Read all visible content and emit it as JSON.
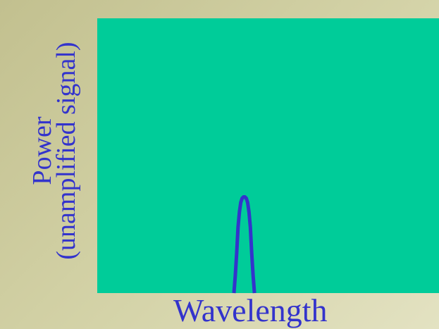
{
  "colors": {
    "plot_background": "#00cc99",
    "curve": "#3333cc",
    "label_text": "#3333cc"
  },
  "chart_data": {
    "type": "line",
    "title": "",
    "xlabel": "Wavelength",
    "ylabel_lines": [
      "Power",
      "(unamplified signal)"
    ],
    "grid": false,
    "legend": "none",
    "xlim": [
      0,
      100
    ],
    "ylim": [
      0,
      100
    ],
    "series": [
      {
        "x": [
          40.0,
          40.4,
          40.8,
          41.2,
          41.6,
          42.0,
          42.4,
          42.8,
          43.2,
          43.6,
          44.0,
          44.4,
          44.8,
          45.2,
          45.6,
          46.0
        ],
        "y": [
          0,
          6.5,
          14.5,
          24.0,
          29.5,
          33.0,
          34.5,
          35.0,
          35.0,
          34.5,
          33.0,
          29.5,
          24.0,
          14.5,
          6.5,
          0
        ]
      }
    ]
  }
}
